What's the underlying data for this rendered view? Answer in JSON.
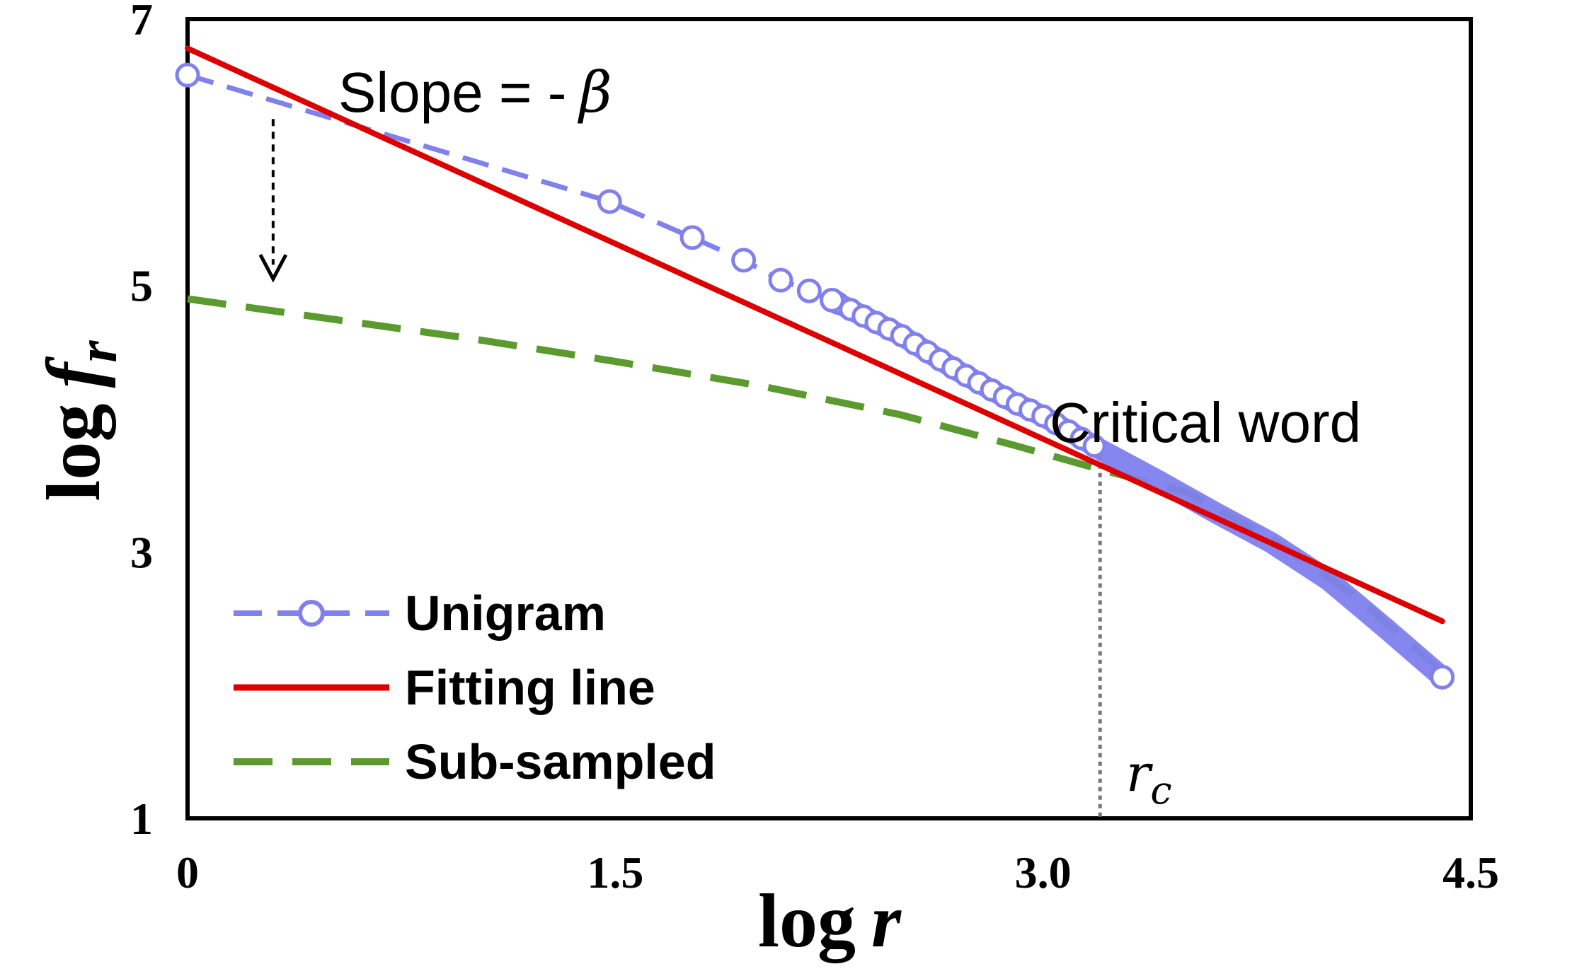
{
  "chart_data": {
    "type": "line",
    "xlabel": {
      "main": "log",
      "var": "r"
    },
    "ylabel": {
      "main": "log",
      "var": "f",
      "sub": "r"
    },
    "xlim": [
      0,
      4.5
    ],
    "ylim": [
      1,
      7
    ],
    "xticks": [
      "0",
      "1.5",
      "3.0",
      "4.5"
    ],
    "yticks": [
      "1",
      "3",
      "5",
      "7"
    ],
    "xtick_values": [
      0,
      1.5,
      3.0,
      4.5
    ],
    "ytick_values": [
      1,
      3,
      5,
      7
    ],
    "grid": false,
    "legend_position": "bottom-left",
    "series": [
      {
        "name": "Unigram",
        "color": "#8080ee",
        "style": "dashed-circle-markers",
        "marker_points": [
          [
            0,
            6.58
          ],
          [
            1.48,
            5.63
          ],
          [
            1.77,
            5.36
          ],
          [
            1.95,
            5.19
          ],
          [
            2.08,
            5.04
          ],
          [
            2.18,
            4.96
          ],
          [
            2.26,
            4.89
          ]
        ],
        "dense_points": [
          [
            2.26,
            4.89
          ],
          [
            2.5,
            4.63
          ],
          [
            2.7,
            4.36
          ],
          [
            2.9,
            4.12
          ],
          [
            3.0,
            4.02
          ],
          [
            3.2,
            3.77
          ],
          [
            3.4,
            3.54
          ],
          [
            3.6,
            3.3
          ],
          [
            3.8,
            3.07
          ],
          [
            4.0,
            2.79
          ],
          [
            4.2,
            2.43
          ],
          [
            4.4,
            2.06
          ]
        ],
        "end_marker": [
          4.4,
          2.06
        ]
      },
      {
        "name": "Fitting line",
        "color": "#dd0000",
        "style": "solid",
        "points": [
          [
            0,
            6.78
          ],
          [
            4.4,
            2.48
          ]
        ]
      },
      {
        "name": "Sub-sampled",
        "color": "#5a9a2e",
        "style": "dashed",
        "points": [
          [
            0,
            4.9
          ],
          [
            0.5,
            4.75
          ],
          [
            1.0,
            4.6
          ],
          [
            1.5,
            4.43
          ],
          [
            2.0,
            4.25
          ],
          [
            2.5,
            4.03
          ],
          [
            2.9,
            3.8
          ],
          [
            3.2,
            3.62
          ],
          [
            3.5,
            3.45
          ],
          [
            3.8,
            3.1
          ],
          [
            4.1,
            2.66
          ],
          [
            4.4,
            2.1
          ]
        ]
      }
    ],
    "annotations": {
      "slope": {
        "text": "Slope = -",
        "symbol": "β"
      },
      "critical": {
        "text": "Critical word"
      },
      "rc": {
        "main": "r",
        "sub": "c",
        "x": 3.2
      },
      "arrow": {
        "x": 0.3,
        "from_y": 6.25,
        "to_y": 5.05
      }
    }
  }
}
